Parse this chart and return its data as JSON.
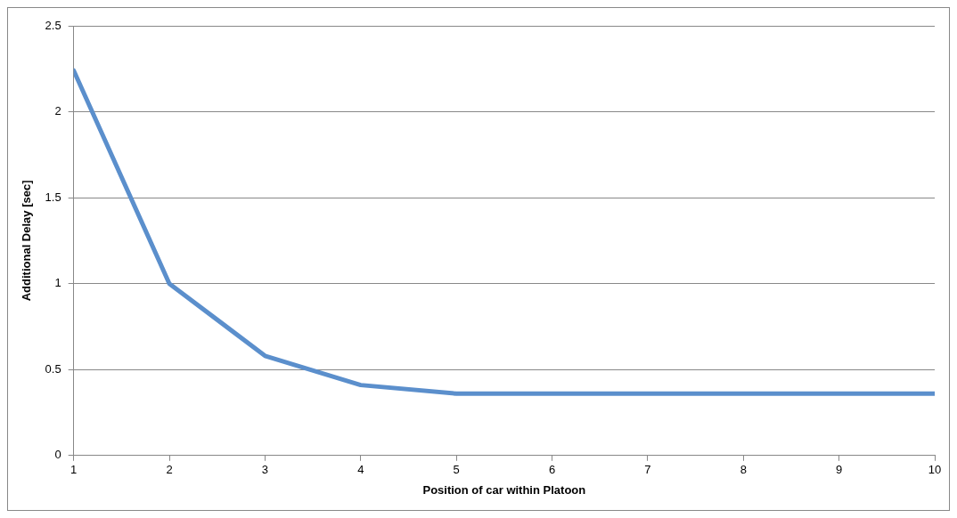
{
  "chart_data": {
    "type": "line",
    "xlabel": "Position of car within Platoon",
    "ylabel": "Additional Delay [sec]",
    "x": [
      1,
      2,
      3,
      4,
      5,
      6,
      7,
      8,
      9,
      10
    ],
    "series": [
      {
        "color": "#5b8fcc",
        "values": [
          2.24,
          1.0,
          0.58,
          0.41,
          0.36,
          0.36,
          0.36,
          0.36,
          0.36,
          0.36
        ]
      }
    ],
    "xlim": [
      1,
      10
    ],
    "xticks": [
      1,
      2,
      3,
      4,
      5,
      6,
      7,
      8,
      9,
      10
    ],
    "ylim": [
      0,
      2.5
    ],
    "yticks": [
      0,
      0.5,
      1,
      1.5,
      2,
      2.5
    ],
    "grid": "y",
    "legend": false,
    "marker": "none",
    "line_style": "solid"
  }
}
